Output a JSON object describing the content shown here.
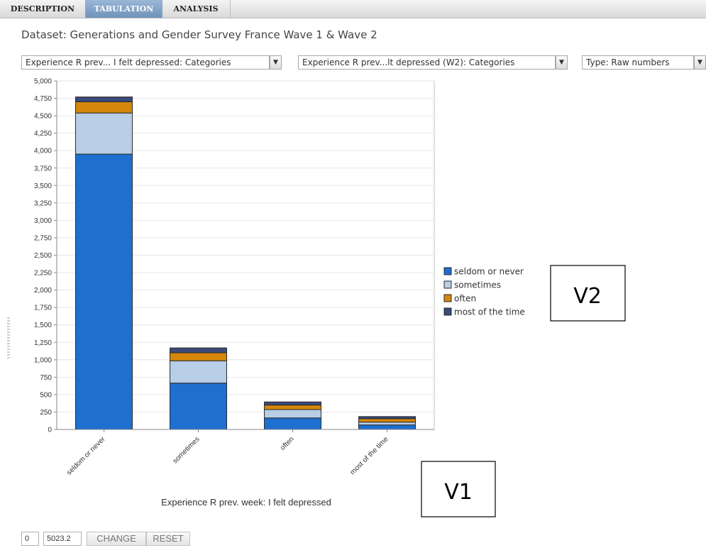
{
  "tabs": [
    {
      "label": "DESCRIPTION",
      "active": false
    },
    {
      "label": "TABULATION",
      "active": true
    },
    {
      "label": "ANALYSIS",
      "active": false
    }
  ],
  "dataset_title": "Dataset: Generations and Gender Survey France Wave 1 & Wave 2",
  "controls": {
    "row_variable": "Experience R prev... I felt depressed: Categories",
    "col_variable": "Experience R prev...lt depressed (W2): Categories",
    "type": "Type: Raw numbers",
    "range_min": "0",
    "range_max": "5023.2",
    "change_label": "CHANGE",
    "reset_label": "RESET"
  },
  "colors": {
    "seldom or never": "#1e6fcf",
    "sometimes": "#b8cde6",
    "often": "#d4870a",
    "most of the time": "#3a4a7a"
  },
  "annotations": {
    "v2": "V2",
    "v1": "V1"
  },
  "chart_data": {
    "type": "bar",
    "stacked": true,
    "categories": [
      "seldom or never",
      "sometimes",
      "often",
      "most of the time"
    ],
    "series": [
      {
        "name": "seldom or never",
        "values": [
          3950,
          665,
          165,
          65
        ]
      },
      {
        "name": "sometimes",
        "values": [
          590,
          320,
          120,
          40
        ]
      },
      {
        "name": "often",
        "values": [
          160,
          115,
          65,
          50
        ]
      },
      {
        "name": "most of the time",
        "values": [
          70,
          70,
          45,
          30
        ]
      }
    ],
    "ylim": [
      0,
      5000
    ],
    "yticks": [
      0,
      250,
      500,
      750,
      1000,
      1250,
      1500,
      1750,
      2000,
      2250,
      2500,
      2750,
      3000,
      3250,
      3500,
      3750,
      4000,
      4250,
      4500,
      4750,
      5000
    ],
    "xlabel": "Experience R prev. week: I felt depressed",
    "ylabel": "",
    "grid": true,
    "legend_position": "right"
  }
}
